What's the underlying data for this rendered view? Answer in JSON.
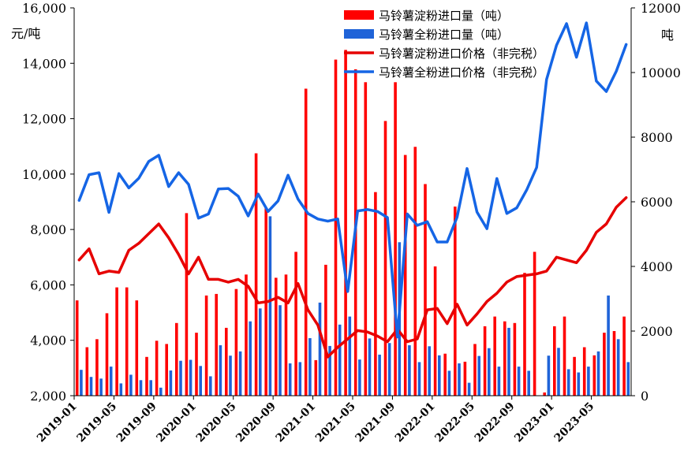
{
  "chart_data": {
    "type": "bar+line",
    "months": [
      "2019-01",
      "2019-02",
      "2019-03",
      "2019-04",
      "2019-05",
      "2019-06",
      "2019-07",
      "2019-08",
      "2019-09",
      "2019-10",
      "2019-11",
      "2019-12",
      "2020-01",
      "2020-02",
      "2020-03",
      "2020-04",
      "2020-05",
      "2020-06",
      "2020-07",
      "2020-08",
      "2020-09",
      "2020-10",
      "2020-11",
      "2020-12",
      "2021-01",
      "2021-02",
      "2021-03",
      "2021-04",
      "2021-05",
      "2021-06",
      "2021-07",
      "2021-08",
      "2021-09",
      "2021-10",
      "2021-11",
      "2021-12",
      "2022-01",
      "2022-02",
      "2022-03",
      "2022-04",
      "2022-05",
      "2022-06",
      "2022-07",
      "2022-08",
      "2022-09",
      "2022-10",
      "2022-11",
      "2022-12",
      "2023-01",
      "2023-02",
      "2023-03",
      "2023-04",
      "2023-05",
      "2023-06",
      "2023-07",
      "2023-08"
    ],
    "x_tick_labels": [
      "2019-01",
      "2019-05",
      "2019-09",
      "2020-01",
      "2020-05",
      "2020-09",
      "2021-01",
      "2021-05",
      "2021-09",
      "2022-01",
      "2022-05",
      "2022-09",
      "2023-01",
      "2023-05"
    ],
    "x_tick_every": 4,
    "left_axis": {
      "unit": "元/吨",
      "min": 2000,
      "max": 16000,
      "ticks": [
        "2,000",
        "4,000",
        "6,000",
        "8,000",
        "10,000",
        "12,000",
        "14,000",
        "16,000"
      ],
      "tick_values": [
        2000,
        4000,
        6000,
        8000,
        10000,
        12000,
        14000,
        16000
      ]
    },
    "right_axis": {
      "unit": "吨",
      "min": 0,
      "max": 12000,
      "ticks": [
        "0",
        "2000",
        "4000",
        "6000",
        "8000",
        "10000",
        "12000"
      ],
      "tick_values": [
        0,
        2000,
        4000,
        6000,
        8000,
        10000,
        12000
      ]
    },
    "series": [
      {
        "name": "马铃薯淀粉进口量（吨）",
        "type": "bar",
        "axis": "right",
        "color": "#ff0000",
        "values": [
          2950,
          1500,
          1750,
          2550,
          3350,
          3350,
          2950,
          1200,
          1700,
          1600,
          2250,
          5650,
          1950,
          3100,
          3150,
          2100,
          3300,
          3750,
          7500,
          5800,
          3650,
          3750,
          4450,
          9500,
          1100,
          4050,
          10400,
          10700,
          10100,
          9700,
          6300,
          8500,
          9700,
          7450,
          7700,
          6550,
          4000,
          1300,
          5850,
          1050,
          1600,
          2150,
          2450,
          2300,
          2250,
          3800,
          4450,
          100,
          2150,
          2450,
          1200,
          1500,
          1250,
          1950,
          2000,
          2450
        ]
      },
      {
        "name": "马铃薯全粉进口量（吨）",
        "type": "bar",
        "axis": "right",
        "color": "#1f63d8",
        "values": [
          800,
          580,
          530,
          900,
          380,
          650,
          480,
          480,
          250,
          780,
          1080,
          1110,
          920,
          600,
          1560,
          1240,
          1370,
          2300,
          2700,
          5550,
          2800,
          1000,
          1040,
          1780,
          2880,
          1540,
          2200,
          2450,
          1120,
          1770,
          1270,
          1630,
          4750,
          1560,
          1040,
          1530,
          1250,
          770,
          1000,
          400,
          1230,
          1470,
          900,
          2100,
          900,
          770,
          0,
          1240,
          1480,
          820,
          720,
          900,
          1370,
          3100,
          1750,
          1040
        ]
      },
      {
        "name": "马铃薯淀粉进口价格（非完税）",
        "type": "line",
        "axis": "left",
        "color": "#e60000",
        "values": [
          6900,
          7300,
          6400,
          6500,
          6450,
          7250,
          7500,
          7850,
          8200,
          7700,
          7100,
          6400,
          7000,
          6200,
          6200,
          6100,
          6200,
          5950,
          5350,
          5400,
          5550,
          5350,
          6050,
          5100,
          4550,
          3400,
          3750,
          4050,
          4350,
          4300,
          4150,
          3950,
          4400,
          3950,
          4050,
          5100,
          5150,
          4600,
          5300,
          4550,
          4950,
          5400,
          5700,
          6100,
          6300,
          6350,
          6400,
          6500,
          7000,
          6900,
          6800,
          7250,
          7900,
          8200,
          8800,
          9150
        ]
      },
      {
        "name": "马铃薯全粉进口价格（非完税）",
        "type": "line",
        "axis": "left",
        "color": "#1565e5",
        "values": [
          9050,
          9980,
          10050,
          8620,
          10020,
          9500,
          9850,
          10460,
          10680,
          9550,
          10050,
          9630,
          8410,
          8560,
          9460,
          9480,
          9200,
          8490,
          9280,
          8650,
          9030,
          9960,
          9100,
          8580,
          8380,
          8300,
          8380,
          5760,
          8670,
          8720,
          8650,
          8430,
          4120,
          8560,
          8150,
          8280,
          7550,
          7550,
          8450,
          10200,
          8630,
          8030,
          9840,
          8580,
          8780,
          9430,
          10240,
          13420,
          14650,
          15430,
          14220,
          15460,
          13360,
          12980,
          13710,
          14680
        ]
      }
    ]
  }
}
